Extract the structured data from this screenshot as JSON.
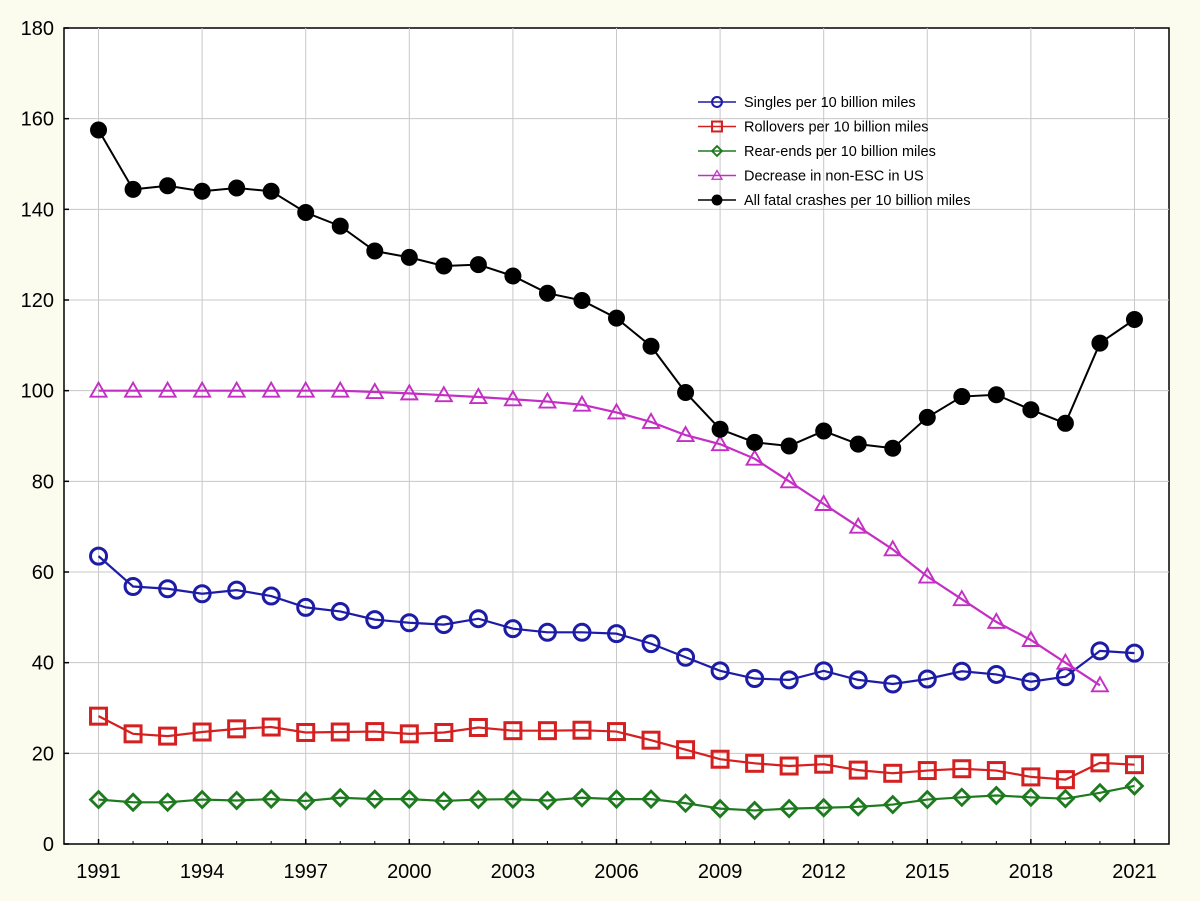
{
  "chart_data": {
    "type": "line",
    "title": "",
    "xlabel": "",
    "ylabel": "",
    "xlim": [
      1990,
      2022
    ],
    "ylim": [
      0,
      180
    ],
    "x_ticks": [
      1991,
      1994,
      1997,
      2000,
      2003,
      2006,
      2009,
      2012,
      2015,
      2018,
      2021
    ],
    "y_ticks": [
      0,
      20,
      40,
      60,
      80,
      100,
      120,
      140,
      160,
      180
    ],
    "grid": true,
    "legend_position": "top-right",
    "series": [
      {
        "name": "Singles per 10 billion miles",
        "marker": "circle",
        "color": "#1c1ca6",
        "x": [
          1991,
          1992,
          1993,
          1994,
          1995,
          1996,
          1997,
          1998,
          1999,
          2000,
          2001,
          2002,
          2003,
          2004,
          2005,
          2006,
          2007,
          2008,
          2009,
          2010,
          2011,
          2012,
          2013,
          2014,
          2015,
          2016,
          2017,
          2018,
          2019,
          2020,
          2021
        ],
        "values": [
          63.5,
          56.8,
          56.3,
          55.2,
          56,
          54.7,
          52.2,
          51.3,
          49.5,
          48.8,
          48.4,
          49.7,
          47.5,
          46.7,
          46.7,
          46.4,
          44.2,
          41.2,
          38.2,
          36.5,
          36.2,
          38.2,
          36.2,
          35.3,
          36.4,
          38.1,
          37.4,
          35.8,
          36.9,
          42.6,
          42.1
        ]
      },
      {
        "name": "Rollovers per 10 billion miles",
        "marker": "square",
        "color": "#d42020",
        "x": [
          1991,
          1992,
          1993,
          1994,
          1995,
          1996,
          1997,
          1998,
          1999,
          2000,
          2001,
          2002,
          2003,
          2004,
          2005,
          2006,
          2007,
          2008,
          2009,
          2010,
          2011,
          2012,
          2013,
          2014,
          2015,
          2016,
          2017,
          2018,
          2019,
          2020,
          2021
        ],
        "values": [
          28.2,
          24.3,
          23.8,
          24.7,
          25.4,
          25.8,
          24.6,
          24.7,
          24.8,
          24.3,
          24.6,
          25.7,
          25,
          25,
          25.1,
          24.8,
          22.9,
          20.8,
          18.7,
          17.8,
          17.2,
          17.6,
          16.3,
          15.6,
          16.2,
          16.6,
          16.2,
          14.8,
          14.2,
          17.9,
          17.5
        ]
      },
      {
        "name": "Rear-ends per 10 billion miles",
        "marker": "diamond",
        "color": "#1e7a1e",
        "x": [
          1991,
          1992,
          1993,
          1994,
          1995,
          1996,
          1997,
          1998,
          1999,
          2000,
          2001,
          2002,
          2003,
          2004,
          2005,
          2006,
          2007,
          2008,
          2009,
          2010,
          2011,
          2012,
          2013,
          2014,
          2015,
          2016,
          2017,
          2018,
          2019,
          2020,
          2021
        ],
        "values": [
          9.8,
          9.2,
          9.2,
          9.8,
          9.6,
          9.9,
          9.5,
          10.2,
          9.9,
          9.9,
          9.5,
          9.8,
          9.9,
          9.6,
          10.2,
          9.9,
          9.9,
          9,
          7.8,
          7.4,
          7.8,
          8,
          8.2,
          8.7,
          9.8,
          10.3,
          10.7,
          10.3,
          10,
          11.3,
          12.8
        ]
      },
      {
        "name": "Decrease in non-ESC in US",
        "marker": "triangle",
        "color": "#c42ec4",
        "x": [
          1991,
          1992,
          1993,
          1994,
          1995,
          1996,
          1997,
          1998,
          1999,
          2000,
          2001,
          2002,
          2003,
          2004,
          2005,
          2006,
          2007,
          2008,
          2009,
          2010,
          2011,
          2012,
          2013,
          2014,
          2015,
          2016,
          2017,
          2018,
          2019,
          2020
        ],
        "values": [
          100,
          100,
          100,
          100,
          100,
          100,
          100,
          100,
          99.7,
          99.4,
          99,
          98.6,
          98.1,
          97.6,
          96.9,
          95.2,
          93.1,
          90.2,
          88.2,
          85,
          80,
          75,
          70,
          65,
          59,
          54,
          49,
          45,
          40,
          35
        ]
      },
      {
        "name": "All fatal crashes per 10 billion miles",
        "marker": "dot",
        "color": "#000000",
        "x": [
          1991,
          1992,
          1993,
          1994,
          1995,
          1996,
          1997,
          1998,
          1999,
          2000,
          2001,
          2002,
          2003,
          2004,
          2005,
          2006,
          2007,
          2008,
          2009,
          2010,
          2011,
          2012,
          2013,
          2014,
          2015,
          2016,
          2017,
          2018,
          2019,
          2020,
          2021
        ],
        "values": [
          157.5,
          144.4,
          145.2,
          144,
          144.7,
          144,
          139.3,
          136.3,
          130.8,
          129.4,
          127.5,
          127.8,
          125.3,
          121.5,
          119.9,
          116,
          109.8,
          99.6,
          91.5,
          88.6,
          87.8,
          91.1,
          88.2,
          87.3,
          94.1,
          98.7,
          99.1,
          95.8,
          92.8,
          110.5,
          115.7
        ]
      }
    ]
  }
}
